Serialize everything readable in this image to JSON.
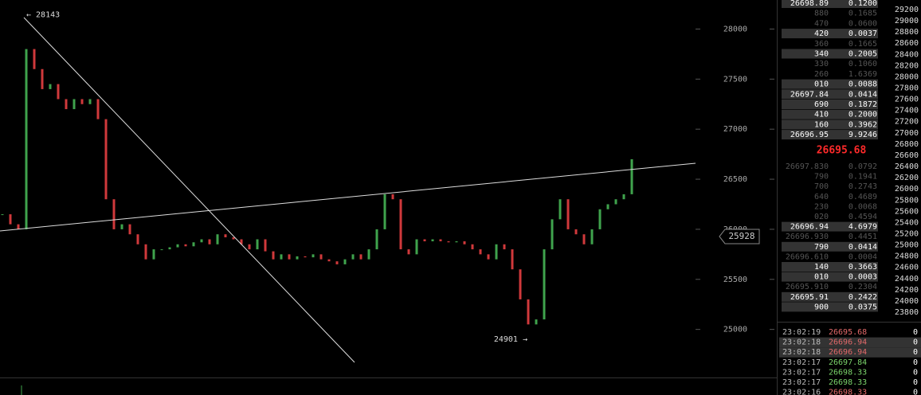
{
  "chart_data": {
    "type": "candlestick",
    "values": [
      26150,
      26050,
      26000,
      27800,
      27600,
      27400,
      27450,
      27300,
      27200,
      27300,
      27250,
      27300,
      27100,
      26300,
      26000,
      26050,
      25950,
      25850,
      25700,
      25800,
      25800,
      25820,
      25850,
      25830,
      25870,
      25900,
      25850,
      25950,
      25920,
      25900,
      25850,
      25800,
      25900,
      25780,
      25700,
      25750,
      25700,
      25730,
      25720,
      25750,
      25700,
      25680,
      25650,
      25700,
      25750,
      25700,
      25800,
      26000,
      26350,
      26300,
      25800,
      25750,
      25900,
      25880,
      25900,
      25880,
      25870,
      25880,
      25850,
      25800,
      25750,
      25700,
      25850,
      25800,
      25600,
      25300,
      25050,
      25100,
      25800,
      26100,
      26300,
      26000,
      25950,
      25850,
      26000,
      26200,
      26250,
      26300,
      26350,
      26700
    ],
    "up_color": "#3fa34d",
    "down_color": "#d0393b",
    "ylim": [
      24520,
      28290
    ],
    "yticks": [
      25000,
      25500,
      26000,
      26500,
      27000,
      27500,
      28000
    ],
    "annotations": [
      {
        "value": 28143,
        "label": "← 28143"
      },
      {
        "value": 24901,
        "label": "24901 →"
      }
    ],
    "price_tag": 25928
  },
  "order_book": {
    "price_scale": {
      "lim": [
        29370,
        23630
      ],
      "ticks": [
        29200,
        29000,
        28800,
        28600,
        28400,
        28200,
        28000,
        27800,
        27600,
        27400,
        27200,
        27000,
        26800,
        26600,
        26400,
        26200,
        26000,
        25800,
        25600,
        25400,
        25200,
        25000,
        24800,
        24600,
        24400,
        24200,
        24000,
        23800
      ]
    },
    "asks": [
      [
        "26698.89",
        "0.1200",
        true
      ],
      [
        "880",
        "0.1685",
        false
      ],
      [
        "470",
        "0.0600",
        false
      ],
      [
        "420",
        "0.0037",
        true
      ],
      [
        "360",
        "0.1665",
        false
      ],
      [
        "340",
        "0.2005",
        true
      ],
      [
        "330",
        "0.1060",
        false
      ],
      [
        "260",
        "1.6369",
        false
      ],
      [
        "010",
        "0.0088",
        true
      ],
      [
        "26697.84",
        "0.0414",
        true
      ],
      [
        "690",
        "0.1872",
        true
      ],
      [
        "410",
        "0.2000",
        true
      ],
      [
        "160",
        "0.3962",
        true
      ],
      [
        "26696.95",
        "9.9246",
        true
      ]
    ],
    "last_price": "26695.68",
    "bids": [
      [
        "26697.830",
        "0.0792",
        false
      ],
      [
        "790",
        "0.1941",
        false
      ],
      [
        "700",
        "0.2743",
        false
      ],
      [
        "640",
        "0.4689",
        false
      ],
      [
        "230",
        "0.0068",
        false
      ],
      [
        "020",
        "0.4594",
        false
      ],
      [
        "26696.94",
        "4.6979",
        true
      ],
      [
        "26696.930",
        "0.4451",
        false
      ],
      [
        "790",
        "0.0414",
        true
      ],
      [
        "26696.610",
        "0.0004",
        false
      ],
      [
        "140",
        "0.3663",
        true
      ],
      [
        "010",
        "0.0003",
        true
      ],
      [
        "26695.910",
        "0.2304",
        false
      ],
      [
        "26695.91",
        "0.2422",
        true
      ],
      [
        "900",
        "0.0375",
        true
      ]
    ]
  },
  "trades": [
    [
      "23:02:19",
      "26695.68",
      "0",
      "sell"
    ],
    [
      "23:02:18",
      "26696.94",
      "0",
      "sell"
    ],
    [
      "23:02:18",
      "26696.94",
      "0",
      "sell"
    ],
    [
      "23:02:17",
      "26697.84",
      "0",
      "buy"
    ],
    [
      "23:02:17",
      "26698.33",
      "0",
      "buy"
    ],
    [
      "23:02:17",
      "26698.33",
      "0",
      "buy"
    ],
    [
      "23:02:16",
      "26698.33",
      "0",
      "sell"
    ]
  ]
}
